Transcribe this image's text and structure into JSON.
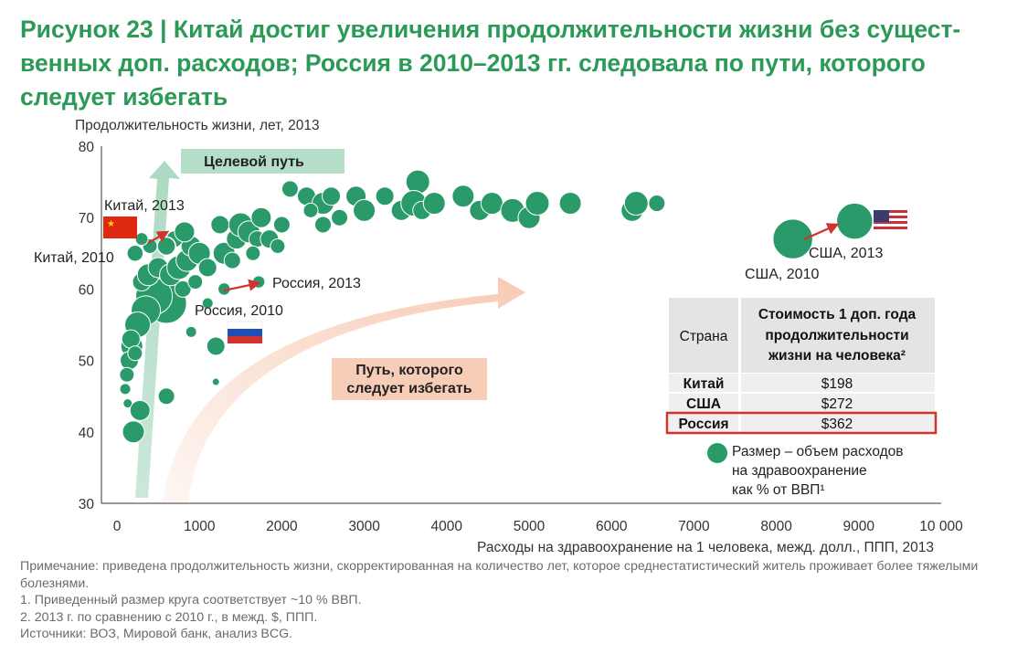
{
  "title": {
    "prefix": "Рисунок 23 | ",
    "text": "Китай достиг увеличения продолжительности жизни без сущест-венных доп. расходов; Россия в 2010–2013 гг. следовала по пути, которого следует избегать"
  },
  "colors": {
    "accent": "#2a9a56",
    "bubble": "#2a9a6a",
    "bubble_stroke": "#ffffff",
    "target_arrow": "#a8d8c0",
    "avoid_arrow": "#f6c8b0",
    "pointer_arrow": "#d0342c",
    "table_header_bg": "#e4e4e4",
    "table_row_bg": "#efefef",
    "highlight_border": "#d0342c"
  },
  "chart_data": {
    "type": "scatter",
    "xlabel": "Расходы на здравоохранение на 1 человека, межд. долл., ППП, 2013",
    "ylabel": "Продолжительность жизни, лет, 2013",
    "xlim": [
      0,
      10000
    ],
    "ylim": [
      30,
      80
    ],
    "x_ticks": [
      "0",
      "1000",
      "2000",
      "3000",
      "4000",
      "5000",
      "6000",
      "7000",
      "8000",
      "9000",
      "10 000"
    ],
    "y_ticks": [
      "30",
      "40",
      "50",
      "60",
      "70",
      "80"
    ],
    "size_unit": "% ВВП",
    "points": [
      {
        "x": 600,
        "y": 58,
        "s": 22
      },
      {
        "x": 450,
        "y": 59,
        "s": 20
      },
      {
        "x": 350,
        "y": 57,
        "s": 16
      },
      {
        "x": 250,
        "y": 55,
        "s": 14
      },
      {
        "x": 180,
        "y": 52,
        "s": 12
      },
      {
        "x": 150,
        "y": 50,
        "s": 10
      },
      {
        "x": 120,
        "y": 48,
        "s": 8
      },
      {
        "x": 100,
        "y": 46,
        "s": 6
      },
      {
        "x": 130,
        "y": 44,
        "s": 5
      },
      {
        "x": 200,
        "y": 40,
        "s": 12
      },
      {
        "x": 280,
        "y": 43,
        "s": 11
      },
      {
        "x": 600,
        "y": 45,
        "s": 9
      },
      {
        "x": 170,
        "y": 53,
        "s": 10
      },
      {
        "x": 220,
        "y": 51,
        "s": 8
      },
      {
        "x": 300,
        "y": 61,
        "s": 10
      },
      {
        "x": 380,
        "y": 62,
        "s": 12
      },
      {
        "x": 500,
        "y": 63,
        "s": 11
      },
      {
        "x": 650,
        "y": 62,
        "s": 12
      },
      {
        "x": 750,
        "y": 63,
        "s": 13
      },
      {
        "x": 850,
        "y": 64,
        "s": 12
      },
      {
        "x": 900,
        "y": 66,
        "s": 11
      },
      {
        "x": 1000,
        "y": 65,
        "s": 12
      },
      {
        "x": 1100,
        "y": 63,
        "s": 10
      },
      {
        "x": 800,
        "y": 60,
        "s": 9
      },
      {
        "x": 950,
        "y": 61,
        "s": 8
      },
      {
        "x": 700,
        "y": 67,
        "s": 9
      },
      {
        "x": 820,
        "y": 68,
        "s": 11
      },
      {
        "x": 400,
        "y": 66,
        "s": 8
      },
      {
        "x": 300,
        "y": 67,
        "s": 7
      },
      {
        "x": 1300,
        "y": 65,
        "s": 12
      },
      {
        "x": 1250,
        "y": 69,
        "s": 10
      },
      {
        "x": 1450,
        "y": 67,
        "s": 11
      },
      {
        "x": 1500,
        "y": 69,
        "s": 13
      },
      {
        "x": 1600,
        "y": 68,
        "s": 12
      },
      {
        "x": 1700,
        "y": 67,
        "s": 9
      },
      {
        "x": 1750,
        "y": 70,
        "s": 11
      },
      {
        "x": 1850,
        "y": 67,
        "s": 10
      },
      {
        "x": 1950,
        "y": 66,
        "s": 8
      },
      {
        "x": 2000,
        "y": 69,
        "s": 9
      },
      {
        "x": 1650,
        "y": 65,
        "s": 8
      },
      {
        "x": 1400,
        "y": 64,
        "s": 9
      },
      {
        "x": 1200,
        "y": 52,
        "s": 10
      },
      {
        "x": 900,
        "y": 54,
        "s": 6
      },
      {
        "x": 1100,
        "y": 58,
        "s": 6
      },
      {
        "x": 1200,
        "y": 47,
        "s": 4
      },
      {
        "x": 2100,
        "y": 74,
        "s": 9
      },
      {
        "x": 2300,
        "y": 73,
        "s": 10
      },
      {
        "x": 2500,
        "y": 72,
        "s": 12
      },
      {
        "x": 2600,
        "y": 73,
        "s": 10
      },
      {
        "x": 2500,
        "y": 69,
        "s": 9
      },
      {
        "x": 2900,
        "y": 73,
        "s": 11
      },
      {
        "x": 3000,
        "y": 71,
        "s": 12
      },
      {
        "x": 3250,
        "y": 73,
        "s": 10
      },
      {
        "x": 3450,
        "y": 71,
        "s": 11
      },
      {
        "x": 3650,
        "y": 75,
        "s": 13
      },
      {
        "x": 3600,
        "y": 72,
        "s": 14
      },
      {
        "x": 3700,
        "y": 71,
        "s": 10
      },
      {
        "x": 3850,
        "y": 72,
        "s": 12
      },
      {
        "x": 4200,
        "y": 73,
        "s": 12
      },
      {
        "x": 4400,
        "y": 71,
        "s": 11
      },
      {
        "x": 4550,
        "y": 72,
        "s": 12
      },
      {
        "x": 4800,
        "y": 71,
        "s": 13
      },
      {
        "x": 5000,
        "y": 70,
        "s": 12
      },
      {
        "x": 5100,
        "y": 72,
        "s": 13
      },
      {
        "x": 5500,
        "y": 72,
        "s": 12
      },
      {
        "x": 6250,
        "y": 71,
        "s": 12
      },
      {
        "x": 6300,
        "y": 72,
        "s": 13
      },
      {
        "x": 6550,
        "y": 72,
        "s": 9
      },
      {
        "x": 2350,
        "y": 71,
        "s": 8
      },
      {
        "x": 2700,
        "y": 70,
        "s": 9
      }
    ],
    "highlighted": [
      {
        "name": "China 2010",
        "x": 220,
        "y": 65,
        "s": 9
      },
      {
        "name": "China 2013",
        "x": 600,
        "y": 66,
        "s": 10
      },
      {
        "name": "Russia 2010",
        "x": 1300,
        "y": 60,
        "s": 7
      },
      {
        "name": "Russia 2013",
        "x": 1720,
        "y": 61,
        "s": 7
      },
      {
        "name": "USA 2010",
        "x": 8200,
        "y": 67,
        "s": 22
      },
      {
        "name": "USA 2013",
        "x": 8950,
        "y": 69.5,
        "s": 20
      }
    ],
    "annotations": {
      "china_2013": "Китай, 2013",
      "china_2010": "Китай, 2010",
      "russia_2013": "Россия, 2013",
      "russia_2010": "Россия, 2010",
      "usa_2013": "США, 2013",
      "usa_2010": "США, 2010",
      "target_path": "Целевой путь",
      "avoid_path_line1": "Путь, которого",
      "avoid_path_line2": "следует избегать"
    },
    "table": {
      "header_country": "Страна",
      "header_cost_lines": [
        "Стоимость 1 доп. года",
        "продолжительности",
        "жизни на человека²"
      ],
      "rows": [
        {
          "country": "Китай",
          "cost": "$198",
          "highlight": false
        },
        {
          "country": "США",
          "cost": "$272",
          "highlight": false
        },
        {
          "country": "Россия",
          "cost": "$362",
          "highlight": true
        }
      ]
    },
    "legend_lines": [
      "Размер – объем расходов",
      "на здравоохранение",
      "как % от ВВП¹"
    ]
  },
  "notes": [
    "Примечание: приведена продолжительность жизни, скорректированная на количество лет, которое среднестатистический житель проживает более тяжелыми болезнями.",
    "1. Приведенный размер круга соответствует ~10 % ВВП.",
    "2. 2013 г. по сравнению с 2010 г., в межд. $, ППП.",
    "Источники: ВОЗ, Мировой банк, анализ BCG."
  ]
}
